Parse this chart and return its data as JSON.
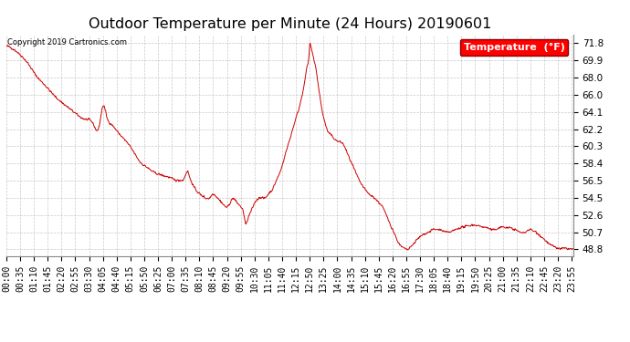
{
  "title": "Outdoor Temperature per Minute (24 Hours) 20190601",
  "copyright_text": "Copyright 2019 Cartronics.com",
  "legend_label": "Temperature  (°F)",
  "line_color": "#cc0000",
  "background_color": "#ffffff",
  "grid_color": "#bbbbbb",
  "yticks": [
    48.8,
    50.7,
    52.6,
    54.5,
    56.5,
    58.4,
    60.3,
    62.2,
    64.1,
    66.0,
    68.0,
    69.9,
    71.8
  ],
  "ylim": [
    48.0,
    72.8
  ],
  "title_fontsize": 11.5,
  "tick_fontsize": 7.0,
  "xtick_interval": 35
}
